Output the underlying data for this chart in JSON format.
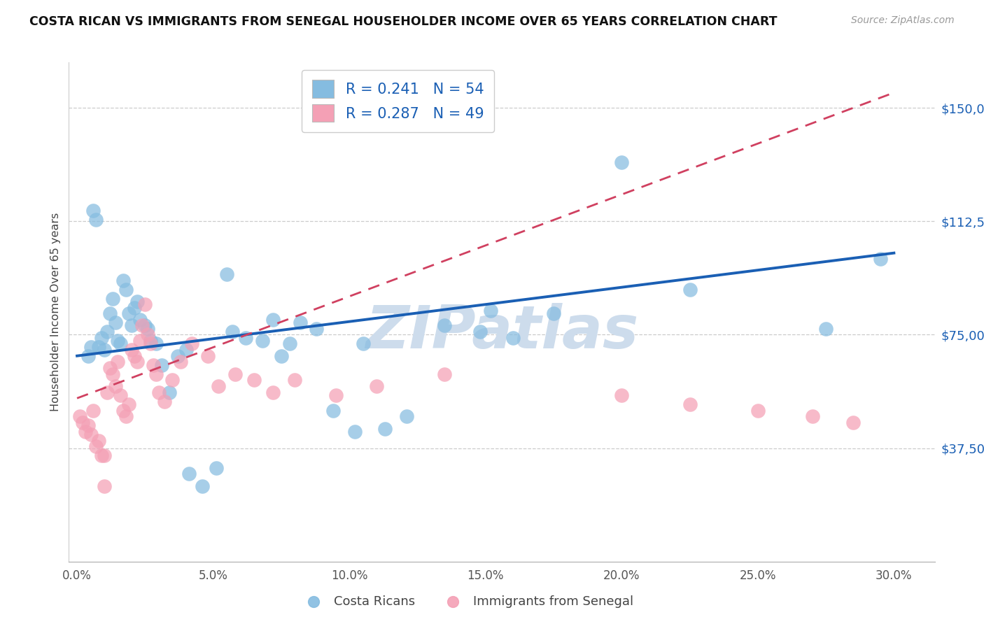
{
  "title": "COSTA RICAN VS IMMIGRANTS FROM SENEGAL HOUSEHOLDER INCOME OVER 65 YEARS CORRELATION CHART",
  "source": "Source: ZipAtlas.com",
  "xlabel_ticks": [
    "0.0%",
    "5.0%",
    "10.0%",
    "15.0%",
    "20.0%",
    "25.0%",
    "30.0%"
  ],
  "xlabel_vals": [
    0.0,
    5.0,
    10.0,
    15.0,
    20.0,
    25.0,
    30.0
  ],
  "ylabel": "Householder Income Over 65 years",
  "ylabel_ticks": [
    "$150,000",
    "$112,500",
    "$75,000",
    "$37,500"
  ],
  "ylabel_vals": [
    150000,
    112500,
    75000,
    37500
  ],
  "ylim": [
    0,
    165000
  ],
  "xlim": [
    -0.3,
    31.5
  ],
  "blue_R": 0.241,
  "blue_N": 54,
  "pink_R": 0.287,
  "pink_N": 49,
  "blue_color": "#85bce0",
  "pink_color": "#f4a0b5",
  "blue_line_color": "#1a5fb4",
  "pink_line_color": "#d04060",
  "watermark": "ZIPatlas",
  "watermark_color": "#cddcec",
  "legend_label_blue": "Costa Ricans",
  "legend_label_pink": "Immigrants from Senegal",
  "blue_line_x0": 0,
  "blue_line_y0": 68000,
  "blue_line_x1": 30,
  "blue_line_y1": 102000,
  "pink_line_x0": 0,
  "pink_line_y0": 54000,
  "pink_line_x1": 30,
  "pink_line_y1": 155000,
  "blue_scatter_x": [
    0.4,
    0.5,
    0.6,
    0.7,
    0.8,
    0.9,
    1.0,
    1.1,
    1.2,
    1.3,
    1.4,
    1.5,
    1.6,
    1.7,
    1.8,
    1.9,
    2.0,
    2.1,
    2.2,
    2.3,
    2.5,
    2.6,
    2.7,
    2.9,
    3.1,
    3.4,
    3.7,
    4.1,
    4.6,
    5.1,
    5.7,
    6.2,
    6.8,
    7.2,
    7.8,
    8.2,
    8.8,
    9.4,
    10.2,
    11.3,
    12.1,
    13.5,
    14.8,
    15.2,
    17.5,
    20.0,
    22.5,
    27.5,
    29.5,
    4.0,
    5.5,
    7.5,
    10.5,
    16.0
  ],
  "blue_scatter_y": [
    68000,
    71000,
    116000,
    113000,
    71000,
    74000,
    70000,
    76000,
    82000,
    87000,
    79000,
    73000,
    72000,
    93000,
    90000,
    82000,
    78000,
    84000,
    86000,
    80000,
    78000,
    77000,
    73000,
    72000,
    65000,
    56000,
    68000,
    29000,
    25000,
    31000,
    76000,
    74000,
    73000,
    80000,
    72000,
    79000,
    77000,
    50000,
    43000,
    44000,
    48000,
    78000,
    76000,
    83000,
    82000,
    132000,
    90000,
    77000,
    100000,
    70000,
    95000,
    68000,
    72000,
    74000
  ],
  "pink_scatter_x": [
    0.1,
    0.2,
    0.3,
    0.4,
    0.5,
    0.6,
    0.7,
    0.8,
    0.9,
    1.0,
    1.1,
    1.2,
    1.3,
    1.4,
    1.5,
    1.6,
    1.7,
    1.8,
    1.9,
    2.0,
    2.1,
    2.2,
    2.3,
    2.4,
    2.5,
    2.6,
    2.7,
    2.8,
    2.9,
    3.0,
    3.2,
    3.5,
    3.8,
    4.2,
    4.8,
    5.2,
    5.8,
    6.5,
    7.2,
    8.0,
    9.5,
    11.0,
    13.5,
    20.0,
    22.5,
    25.0,
    27.0,
    28.5,
    1.0
  ],
  "pink_scatter_y": [
    48000,
    46000,
    43000,
    45000,
    42000,
    50000,
    38000,
    40000,
    35000,
    35000,
    56000,
    64000,
    62000,
    58000,
    66000,
    55000,
    50000,
    48000,
    52000,
    70000,
    68000,
    66000,
    73000,
    78000,
    85000,
    75000,
    72000,
    65000,
    62000,
    56000,
    53000,
    60000,
    66000,
    72000,
    68000,
    58000,
    62000,
    60000,
    56000,
    60000,
    55000,
    58000,
    62000,
    55000,
    52000,
    50000,
    48000,
    46000,
    25000
  ]
}
